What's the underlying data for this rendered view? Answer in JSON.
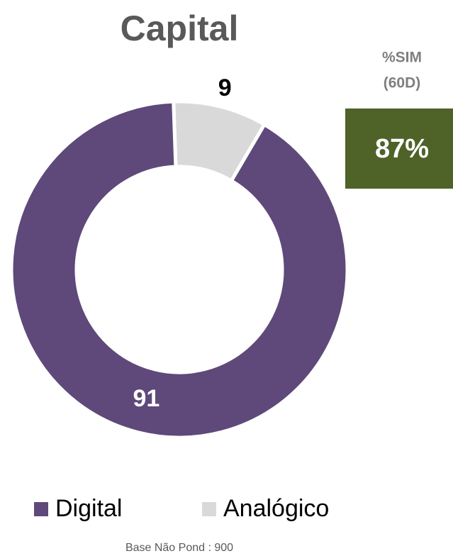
{
  "chart_data": {
    "type": "donut",
    "title": "Capital",
    "categories": [
      "Digital",
      "Analógico"
    ],
    "values": [
      91,
      9
    ],
    "colors": [
      "#5e497a",
      "#d9d9d9"
    ],
    "legend": "bottom",
    "annotations": {
      "box_title": [
        "%SIM",
        "(60D)"
      ],
      "box_value": "87%",
      "footer": "Base Não Pond : 900"
    }
  }
}
